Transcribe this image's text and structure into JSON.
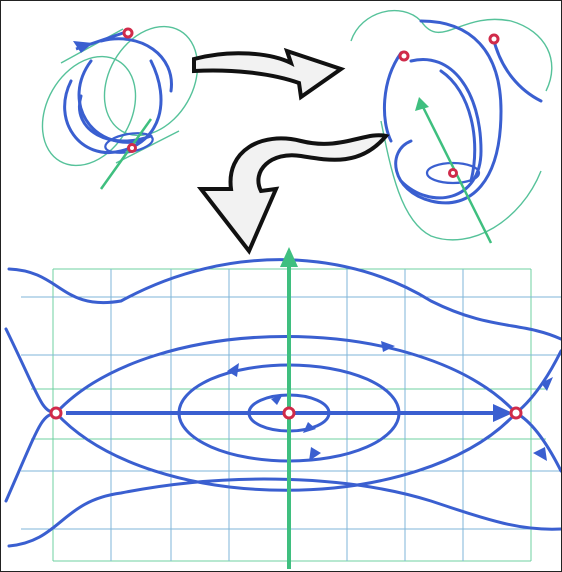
{
  "colors": {
    "flow": "#3a5fd0",
    "grid": "#7fb6d8",
    "axis": "#3fbf7f",
    "critical_point": "#d02b4a"
  },
  "icons": [
    "curved-arrow-icon",
    "curved-arrow-icon"
  ]
}
